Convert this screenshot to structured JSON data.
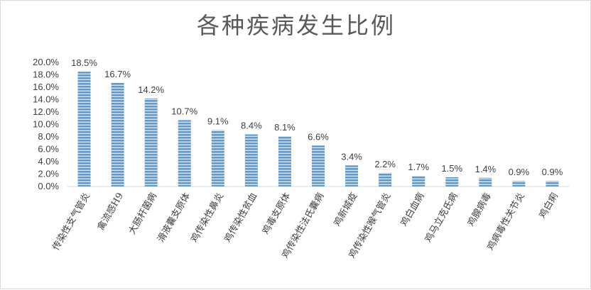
{
  "chart_data": {
    "type": "bar",
    "title": "各种疾病发生比例",
    "xlabel": "",
    "ylabel": "",
    "ylim": [
      0,
      20
    ],
    "ytick_step": 2,
    "ytick_labels": [
      "0.0%",
      "2.0%",
      "4.0%",
      "6.0%",
      "8.0%",
      "10.0%",
      "12.0%",
      "14.0%",
      "16.0%",
      "18.0%",
      "20.0%"
    ],
    "categories": [
      "传染性支气管炎",
      "禽流感H9",
      "大肠杆菌病",
      "滑液囊支原体",
      "鸡传染性鼻炎",
      "鸡传染性贫血",
      "鸡毒支原体",
      "鸡传染性法氏囊病",
      "鸡新城疫",
      "鸡传染性喉气管炎",
      "鸡白血病",
      "鸡马立克氏病",
      "鸡腺病毒",
      "鸡病毒性关节炎",
      "鸡白痢"
    ],
    "values": [
      18.5,
      16.7,
      14.2,
      10.7,
      9.1,
      8.4,
      8.1,
      6.6,
      3.4,
      2.2,
      1.7,
      1.5,
      1.4,
      0.9,
      0.9
    ],
    "data_labels": [
      "18.5%",
      "16.7%",
      "14.2%",
      "10.7%",
      "9.1%",
      "8.4%",
      "8.1%",
      "6.6%",
      "3.4%",
      "2.2%",
      "1.7%",
      "1.5%",
      "1.4%",
      "0.9%",
      "0.9%"
    ],
    "bar_color": "#5b9bd5",
    "bar_stripe_color": "#ffffff",
    "grid": false,
    "legend": "none"
  }
}
